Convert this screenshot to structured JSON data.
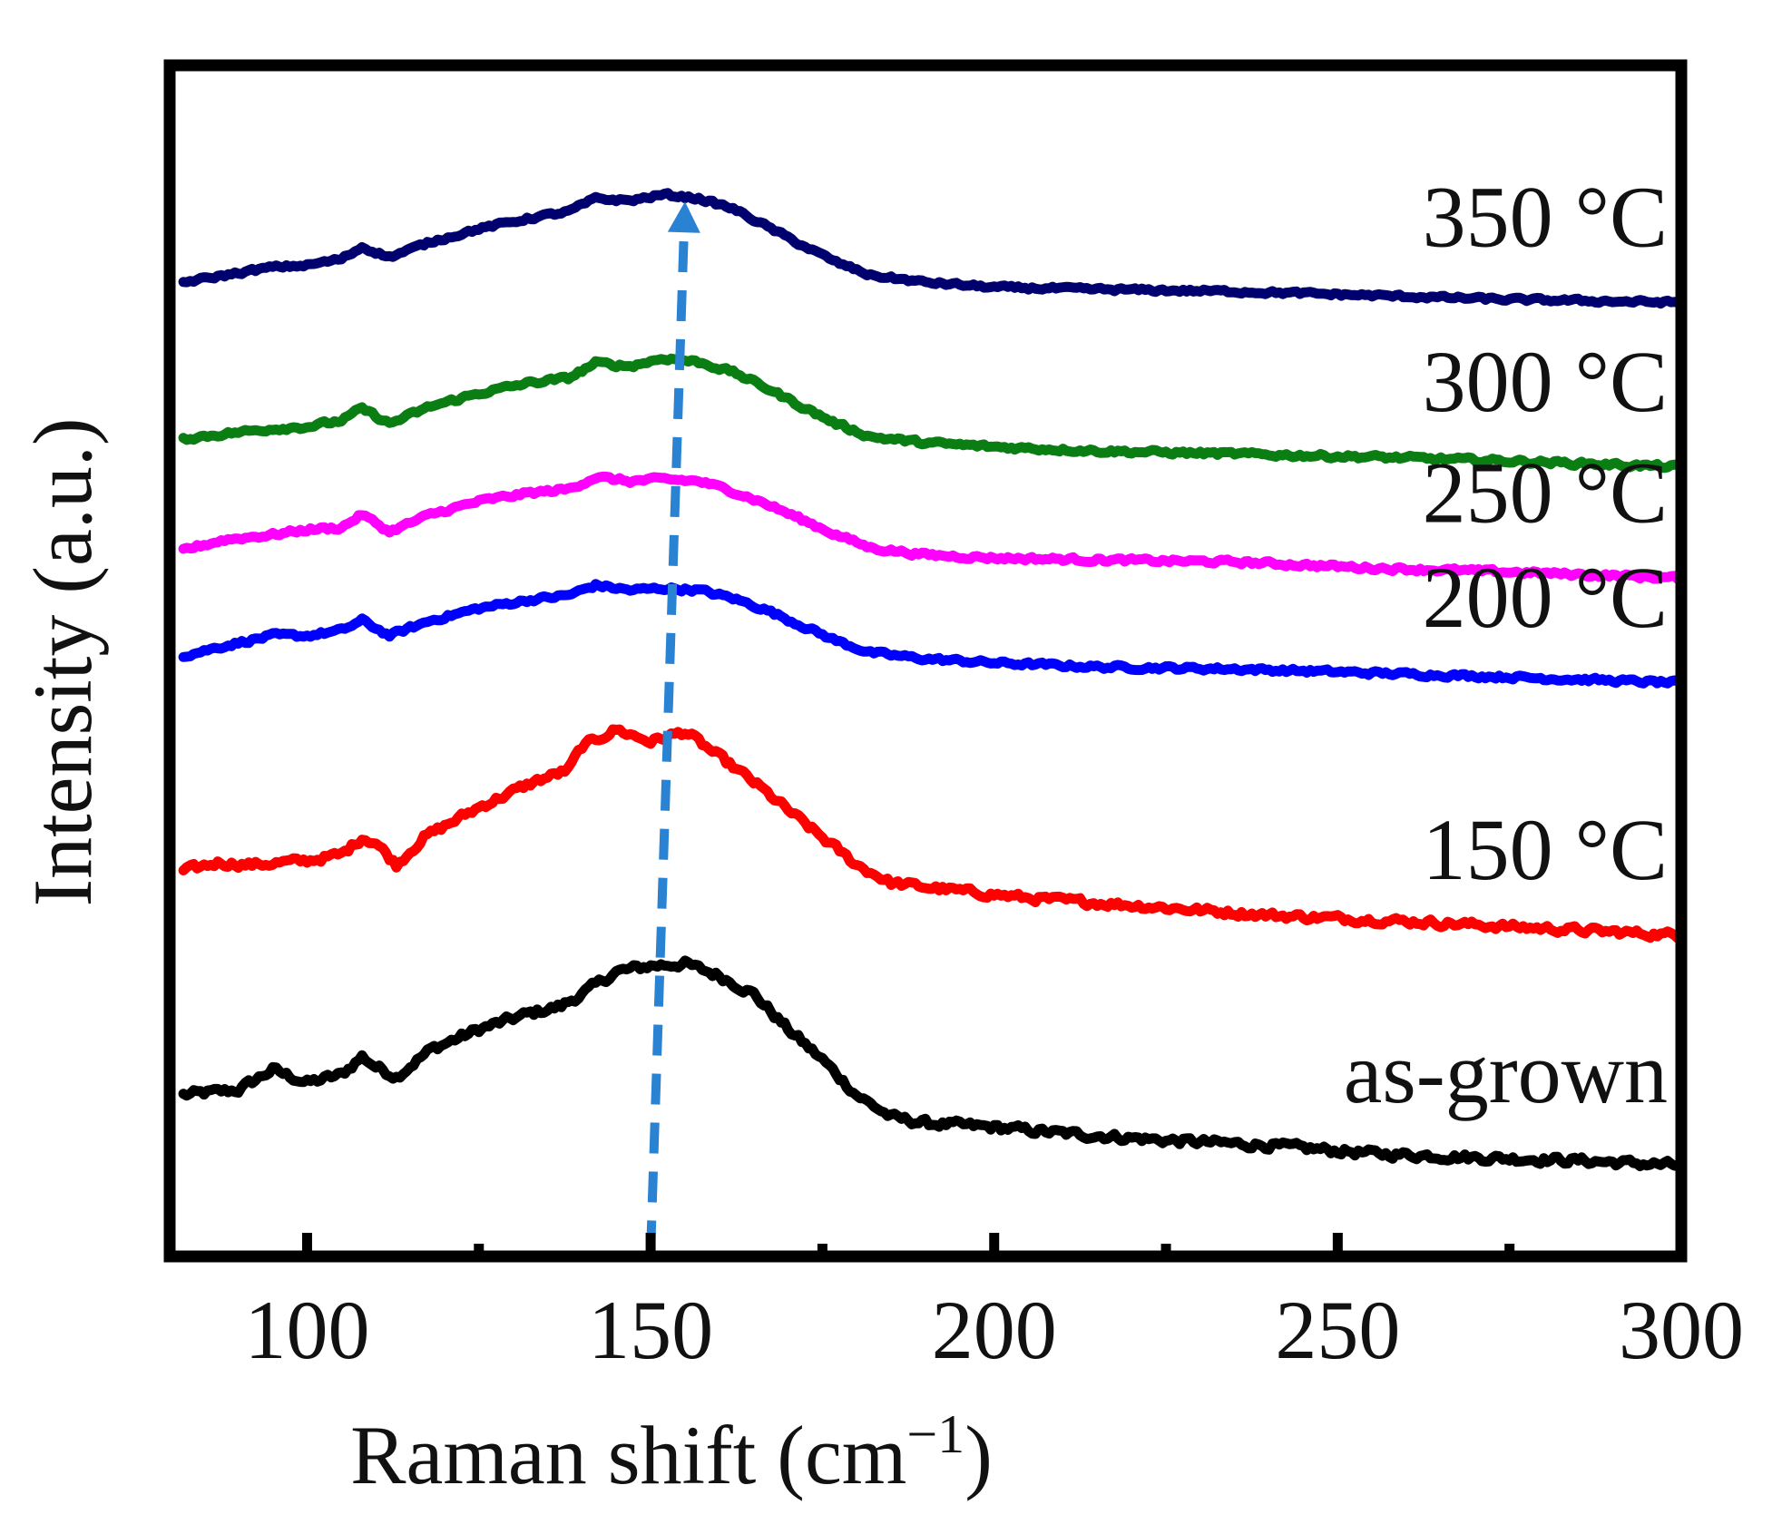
{
  "chart_data": {
    "type": "line",
    "title": "",
    "xlabel_main": "Raman shift (cm",
    "xlabel_sup": "−1",
    "xlabel_close": ")",
    "ylabel": "Intensity (a.u.)",
    "xlim": [
      80,
      300
    ],
    "ylim": [
      -3.1,
      8.7
    ],
    "x_ticks": [
      100,
      150,
      200,
      250,
      300
    ],
    "x_tick_labels": [
      "100",
      "150",
      "200",
      "250",
      "300"
    ],
    "x_minor_ticks": [
      125,
      175,
      225,
      275
    ],
    "y_ticks_shown": false,
    "series": [
      {
        "name": "as-grown",
        "label": "as-grown",
        "color": "#000000",
        "noise": 0.055,
        "points": [
          [
            82,
            -1.5
          ],
          [
            90,
            -1.45
          ],
          [
            95,
            -1.25
          ],
          [
            100,
            -1.38
          ],
          [
            105,
            -1.3
          ],
          [
            108,
            -1.12
          ],
          [
            110,
            -1.22
          ],
          [
            113,
            -1.32
          ],
          [
            118,
            -1.05
          ],
          [
            125,
            -0.85
          ],
          [
            132,
            -0.7
          ],
          [
            137,
            -0.62
          ],
          [
            140,
            -0.5
          ],
          [
            145,
            -0.28
          ],
          [
            150,
            -0.22
          ],
          [
            155,
            -0.2
          ],
          [
            160,
            -0.32
          ],
          [
            165,
            -0.5
          ],
          [
            170,
            -0.85
          ],
          [
            175,
            -1.15
          ],
          [
            180,
            -1.5
          ],
          [
            185,
            -1.72
          ],
          [
            190,
            -1.78
          ],
          [
            200,
            -1.82
          ],
          [
            210,
            -1.88
          ],
          [
            225,
            -1.95
          ],
          [
            240,
            -2.0
          ],
          [
            255,
            -2.08
          ],
          [
            270,
            -2.12
          ],
          [
            285,
            -2.15
          ],
          [
            300,
            -2.2
          ]
        ]
      },
      {
        "name": "150 °C",
        "label": "150 °C",
        "color": "#ff0000",
        "noise": 0.05,
        "points": [
          [
            82,
            0.72
          ],
          [
            87,
            0.8
          ],
          [
            92,
            0.78
          ],
          [
            100,
            0.82
          ],
          [
            105,
            0.88
          ],
          [
            108,
            1.05
          ],
          [
            110,
            1.0
          ],
          [
            113,
            0.78
          ],
          [
            117,
            1.05
          ],
          [
            125,
            1.35
          ],
          [
            133,
            1.6
          ],
          [
            138,
            1.72
          ],
          [
            140,
            1.95
          ],
          [
            145,
            2.12
          ],
          [
            150,
            2.0
          ],
          [
            155,
            2.1
          ],
          [
            160,
            1.85
          ],
          [
            165,
            1.6
          ],
          [
            170,
            1.32
          ],
          [
            175,
            1.05
          ],
          [
            180,
            0.78
          ],
          [
            185,
            0.6
          ],
          [
            195,
            0.52
          ],
          [
            205,
            0.45
          ],
          [
            220,
            0.38
          ],
          [
            240,
            0.28
          ],
          [
            260,
            0.22
          ],
          [
            280,
            0.15
          ],
          [
            300,
            0.08
          ]
        ]
      },
      {
        "name": "200 °C",
        "label": "200 °C",
        "color": "#0000ff",
        "noise": 0.03,
        "points": [
          [
            82,
            2.85
          ],
          [
            88,
            2.95
          ],
          [
            95,
            3.05
          ],
          [
            100,
            3.05
          ],
          [
            105,
            3.1
          ],
          [
            108,
            3.2
          ],
          [
            112,
            3.05
          ],
          [
            118,
            3.2
          ],
          [
            125,
            3.32
          ],
          [
            132,
            3.4
          ],
          [
            138,
            3.45
          ],
          [
            142,
            3.55
          ],
          [
            147,
            3.5
          ],
          [
            152,
            3.52
          ],
          [
            157,
            3.5
          ],
          [
            162,
            3.42
          ],
          [
            167,
            3.3
          ],
          [
            172,
            3.15
          ],
          [
            177,
            3.0
          ],
          [
            182,
            2.88
          ],
          [
            190,
            2.82
          ],
          [
            200,
            2.78
          ],
          [
            215,
            2.74
          ],
          [
            235,
            2.72
          ],
          [
            255,
            2.68
          ],
          [
            275,
            2.64
          ],
          [
            300,
            2.58
          ]
        ]
      },
      {
        "name": "250 °C",
        "label": "250 °C",
        "color": "#ff00ff",
        "noise": 0.03,
        "points": [
          [
            82,
            3.9
          ],
          [
            88,
            4.0
          ],
          [
            95,
            4.05
          ],
          [
            100,
            4.1
          ],
          [
            105,
            4.12
          ],
          [
            108,
            4.25
          ],
          [
            112,
            4.08
          ],
          [
            118,
            4.25
          ],
          [
            125,
            4.38
          ],
          [
            132,
            4.46
          ],
          [
            138,
            4.5
          ],
          [
            142,
            4.62
          ],
          [
            147,
            4.58
          ],
          [
            152,
            4.6
          ],
          [
            157,
            4.58
          ],
          [
            162,
            4.48
          ],
          [
            167,
            4.35
          ],
          [
            172,
            4.2
          ],
          [
            177,
            4.05
          ],
          [
            182,
            3.92
          ],
          [
            190,
            3.85
          ],
          [
            200,
            3.82
          ],
          [
            215,
            3.8
          ],
          [
            235,
            3.78
          ],
          [
            255,
            3.72
          ],
          [
            275,
            3.68
          ],
          [
            300,
            3.62
          ]
        ]
      },
      {
        "name": "300 °C",
        "label": "300 °C",
        "color": "#0a7e12",
        "noise": 0.03,
        "points": [
          [
            82,
            5.0
          ],
          [
            88,
            5.05
          ],
          [
            95,
            5.1
          ],
          [
            100,
            5.12
          ],
          [
            105,
            5.18
          ],
          [
            108,
            5.3
          ],
          [
            112,
            5.15
          ],
          [
            118,
            5.32
          ],
          [
            125,
            5.45
          ],
          [
            132,
            5.55
          ],
          [
            138,
            5.6
          ],
          [
            142,
            5.75
          ],
          [
            147,
            5.72
          ],
          [
            152,
            5.8
          ],
          [
            157,
            5.76
          ],
          [
            162,
            5.66
          ],
          [
            167,
            5.5
          ],
          [
            172,
            5.32
          ],
          [
            177,
            5.15
          ],
          [
            182,
            5.02
          ],
          [
            190,
            4.96
          ],
          [
            200,
            4.92
          ],
          [
            215,
            4.88
          ],
          [
            235,
            4.85
          ],
          [
            255,
            4.82
          ],
          [
            275,
            4.78
          ],
          [
            300,
            4.72
          ]
        ]
      },
      {
        "name": "350 °C",
        "label": "350 °C",
        "color": "#00006e",
        "noise": 0.025,
        "points": [
          [
            82,
            6.55
          ],
          [
            88,
            6.62
          ],
          [
            95,
            6.7
          ],
          [
            100,
            6.72
          ],
          [
            105,
            6.78
          ],
          [
            108,
            6.9
          ],
          [
            112,
            6.8
          ],
          [
            118,
            6.95
          ],
          [
            125,
            7.08
          ],
          [
            132,
            7.18
          ],
          [
            138,
            7.25
          ],
          [
            142,
            7.38
          ],
          [
            147,
            7.36
          ],
          [
            152,
            7.42
          ],
          [
            157,
            7.38
          ],
          [
            162,
            7.28
          ],
          [
            167,
            7.1
          ],
          [
            172,
            6.92
          ],
          [
            177,
            6.75
          ],
          [
            182,
            6.62
          ],
          [
            190,
            6.55
          ],
          [
            200,
            6.5
          ],
          [
            215,
            6.48
          ],
          [
            235,
            6.46
          ],
          [
            255,
            6.42
          ],
          [
            275,
            6.38
          ],
          [
            300,
            6.35
          ]
        ]
      }
    ],
    "annotations": [
      {
        "type": "dashed-arrow",
        "color": "#2a82d2",
        "from": [
          150,
          -3.05
        ],
        "to": [
          155,
          7.35
        ]
      }
    ]
  }
}
